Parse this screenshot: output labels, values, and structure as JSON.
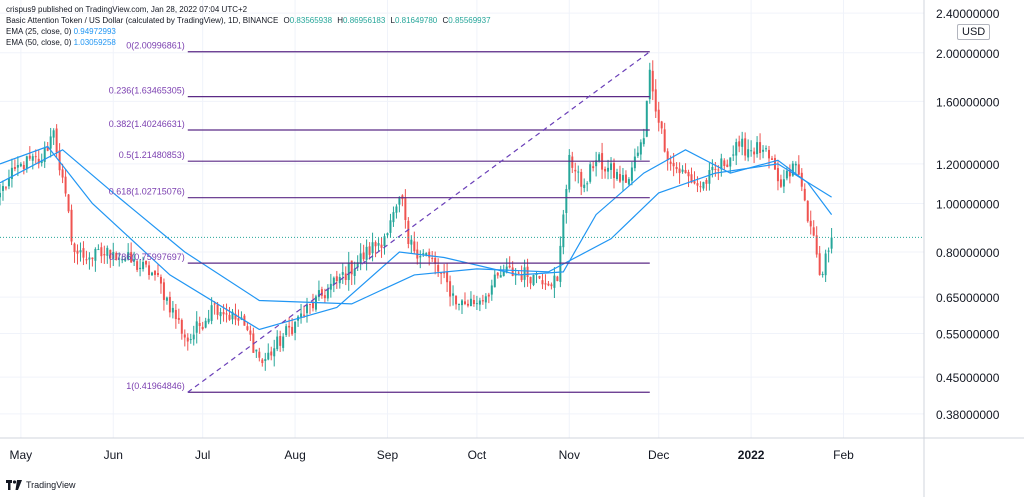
{
  "header": {
    "published": "crispus9 published on TradingView.com, Jan 28, 2022 07:04 UTC+2",
    "symbol": "Basic Attention Token / US Dollar (calculated by TradingView), 1D, BINANCE",
    "open_label": "O",
    "open": "0.83565938",
    "high_label": "H",
    "high": "0.86956183",
    "low_label": "L",
    "low": "0.81649780",
    "close_label": "C",
    "close": "0.85569937",
    "ema25_label": "EMA (25, close, 0)",
    "ema25_value": "0.94972993",
    "ema50_label": "EMA (50, close, 0)",
    "ema50_value": "1.03059258"
  },
  "currency": "USD",
  "footer": {
    "brand": "TradingView"
  },
  "colors": {
    "up": "#26a69a",
    "down": "#ef5350",
    "ema": "#2196f3",
    "fib": "#5b2a86",
    "fib_label": "#7b3fb0",
    "trend": "#6a3fb8",
    "price_line": "#26a69a"
  },
  "chart_data": {
    "type": "candlestick",
    "y_scale": "log",
    "ylim": [
      0.34,
      2.55
    ],
    "y_ticks": [
      "2.40000000",
      "2.00000000",
      "1.60000000",
      "1.20000000",
      "1.00000000",
      "0.80000000",
      "0.65000000",
      "0.55000000",
      "0.45000000",
      "0.38000000"
    ],
    "y_tick_values": [
      2.4,
      2.0,
      1.6,
      1.2,
      1.0,
      0.8,
      0.65,
      0.55,
      0.45,
      0.38
    ],
    "x_ticks": [
      {
        "label": "May",
        "date": "2021-05-01",
        "bold": false
      },
      {
        "label": "Jun",
        "date": "2021-06-01",
        "bold": false
      },
      {
        "label": "Jul",
        "date": "2021-07-01",
        "bold": false
      },
      {
        "label": "Aug",
        "date": "2021-08-01",
        "bold": false
      },
      {
        "label": "Sep",
        "date": "2021-09-01",
        "bold": false
      },
      {
        "label": "Oct",
        "date": "2021-10-01",
        "bold": false
      },
      {
        "label": "Nov",
        "date": "2021-11-01",
        "bold": false
      },
      {
        "label": "Dec",
        "date": "2021-12-01",
        "bold": false
      },
      {
        "label": "2022",
        "date": "2022-01-01",
        "bold": true
      },
      {
        "label": "Feb",
        "date": "2022-02-01",
        "bold": false
      }
    ],
    "xlim": [
      "2021-04-24",
      "2022-02-28"
    ],
    "grid": true,
    "candle_key_points": [
      [
        "2021-04-24",
        1.05
      ],
      [
        "2021-05-01",
        1.2
      ],
      [
        "2021-05-08",
        1.22
      ],
      [
        "2021-05-12",
        1.4
      ],
      [
        "2021-05-19",
        0.8
      ],
      [
        "2021-05-24",
        0.78
      ],
      [
        "2021-06-01",
        0.8
      ],
      [
        "2021-06-15",
        0.72
      ],
      [
        "2021-06-26",
        0.53
      ],
      [
        "2021-07-05",
        0.63
      ],
      [
        "2021-07-15",
        0.57
      ],
      [
        "2021-07-21",
        0.48
      ],
      [
        "2021-08-01",
        0.58
      ],
      [
        "2021-08-15",
        0.7
      ],
      [
        "2021-08-31",
        0.86
      ],
      [
        "2021-09-06",
        1.02
      ],
      [
        "2021-09-08",
        0.83
      ],
      [
        "2021-09-15",
        0.78
      ],
      [
        "2021-09-25",
        0.63
      ],
      [
        "2021-10-02",
        0.64
      ],
      [
        "2021-10-10",
        0.73
      ],
      [
        "2021-10-20",
        0.72
      ],
      [
        "2021-10-28",
        0.7
      ],
      [
        "2021-11-01",
        1.25
      ],
      [
        "2021-11-05",
        1.08
      ],
      [
        "2021-11-10",
        1.22
      ],
      [
        "2021-11-20",
        1.1
      ],
      [
        "2021-11-26",
        1.35
      ],
      [
        "2021-11-28",
        1.85
      ],
      [
        "2021-12-01",
        1.45
      ],
      [
        "2021-12-05",
        1.2
      ],
      [
        "2021-12-15",
        1.08
      ],
      [
        "2021-12-28",
        1.3
      ],
      [
        "2022-01-05",
        1.28
      ],
      [
        "2022-01-11",
        1.08
      ],
      [
        "2022-01-16",
        1.2
      ],
      [
        "2022-01-21",
        0.9
      ],
      [
        "2022-01-24",
        0.72
      ],
      [
        "2022-01-28",
        0.855
      ]
    ],
    "ema25_points": [
      [
        "2021-04-24",
        1.2
      ],
      [
        "2021-05-10",
        1.3
      ],
      [
        "2021-05-25",
        1.0
      ],
      [
        "2021-06-20",
        0.72
      ],
      [
        "2021-07-20",
        0.56
      ],
      [
        "2021-08-15",
        0.62
      ],
      [
        "2021-09-05",
        0.8
      ],
      [
        "2021-09-20",
        0.78
      ],
      [
        "2021-10-15",
        0.72
      ],
      [
        "2021-10-30",
        0.73
      ],
      [
        "2021-11-10",
        0.95
      ],
      [
        "2021-11-26",
        1.15
      ],
      [
        "2021-12-10",
        1.28
      ],
      [
        "2021-12-25",
        1.15
      ],
      [
        "2022-01-10",
        1.22
      ],
      [
        "2022-01-20",
        1.1
      ],
      [
        "2022-01-28",
        0.95
      ]
    ],
    "ema50_points": [
      [
        "2021-04-24",
        1.1
      ],
      [
        "2021-05-15",
        1.28
      ],
      [
        "2021-06-01",
        1.05
      ],
      [
        "2021-06-25",
        0.8
      ],
      [
        "2021-07-20",
        0.64
      ],
      [
        "2021-08-20",
        0.63
      ],
      [
        "2021-09-10",
        0.72
      ],
      [
        "2021-10-01",
        0.74
      ],
      [
        "2021-10-25",
        0.73
      ],
      [
        "2021-11-15",
        0.85
      ],
      [
        "2021-12-01",
        1.05
      ],
      [
        "2021-12-20",
        1.15
      ],
      [
        "2022-01-10",
        1.2
      ],
      [
        "2022-01-28",
        1.03
      ]
    ],
    "fib_start": "2021-06-26",
    "fib_end": "2021-11-28",
    "fib_levels": [
      {
        "label": "0(2.00996861)",
        "value": 2.00996861
      },
      {
        "label": "0.236(1.63465305)",
        "value": 1.63465305
      },
      {
        "label": "0.382(1.40246631)",
        "value": 1.40246631
      },
      {
        "label": "0.5(1.21480853)",
        "value": 1.21480853
      },
      {
        "label": "0.618(1.02715076)",
        "value": 1.02715076
      },
      {
        "label": "0.786(0.75997697)",
        "value": 0.75997697
      },
      {
        "label": "1(0.41964846)",
        "value": 0.41964846
      }
    ],
    "trend_line": {
      "from": [
        "2021-06-26",
        0.41964846
      ],
      "to": [
        "2021-11-28",
        2.00996861
      ]
    },
    "last_price": 0.8557
  }
}
